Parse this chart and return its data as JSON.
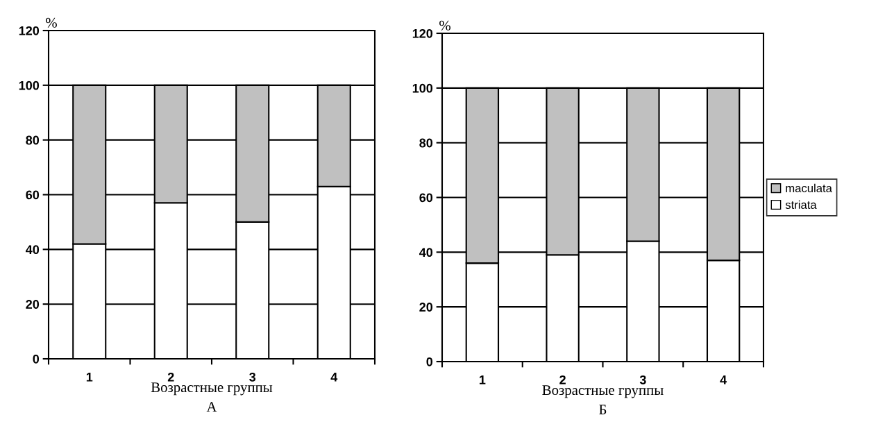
{
  "chart_data": [
    {
      "type": "bar",
      "stacked": true,
      "categories": [
        "1",
        "2",
        "3",
        "4"
      ],
      "ylabel": "%",
      "xlabel": "Возрастные группы",
      "annotations": [
        "А"
      ],
      "ylim": [
        0,
        120
      ],
      "yticks": [
        0,
        20,
        40,
        60,
        80,
        100,
        120
      ],
      "grid": "y",
      "series": [
        {
          "color": "#ffffff",
          "values": [
            42,
            57,
            50,
            63
          ]
        },
        {
          "color": "#c0c0c0",
          "values": [
            58,
            43,
            50,
            37
          ]
        }
      ]
    },
    {
      "type": "bar",
      "stacked": true,
      "categories": [
        "1",
        "2",
        "3",
        "4"
      ],
      "ylabel": "%",
      "xlabel": "Возрастные группы",
      "annotations": [
        "Б"
      ],
      "ylim": [
        0,
        120
      ],
      "yticks": [
        0,
        20,
        40,
        60,
        80,
        100,
        120
      ],
      "grid": "y",
      "legend": "right",
      "series": [
        {
          "name": "striata",
          "color": "#ffffff",
          "values": [
            36,
            39,
            44,
            37
          ]
        },
        {
          "name": "maculata",
          "color": "#c0c0c0",
          "values": [
            64,
            61,
            56,
            63
          ]
        }
      ]
    }
  ]
}
